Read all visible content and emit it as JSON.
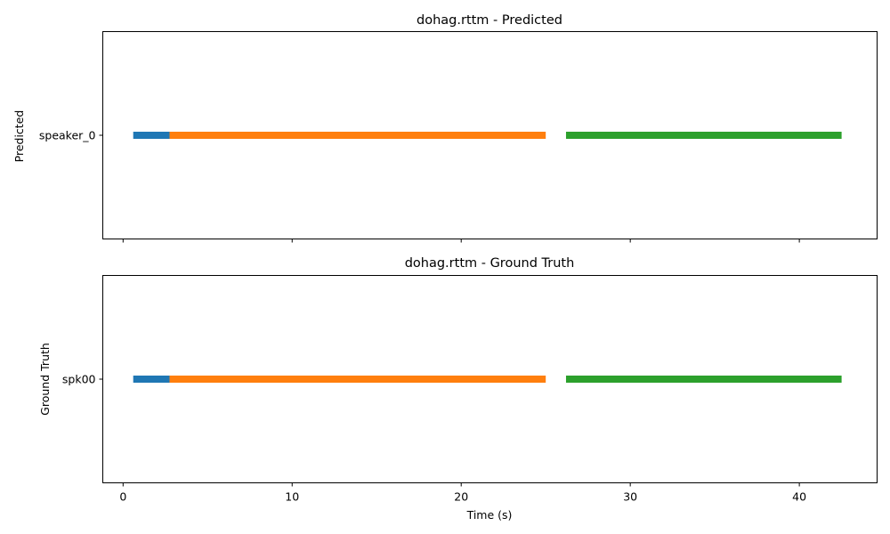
{
  "chart_data": [
    {
      "type": "timeline",
      "title": "dohag.rttm - Predicted",
      "xlabel": "",
      "ylabel": "Predicted",
      "xlim": [
        -1.2,
        44.6
      ],
      "xticks": [
        0,
        10,
        20,
        30,
        40
      ],
      "show_xtick_labels": false,
      "tracks": [
        "speaker_0"
      ],
      "segments": [
        {
          "track": "speaker_0",
          "start": 0.6,
          "end": 2.75,
          "color": "#1f77b4"
        },
        {
          "track": "speaker_0",
          "start": 2.75,
          "end": 25.0,
          "color": "#ff7f0e"
        },
        {
          "track": "speaker_0",
          "start": 26.2,
          "end": 42.5,
          "color": "#2ca02c"
        }
      ]
    },
    {
      "type": "timeline",
      "title": "dohag.rttm - Ground Truth",
      "xlabel": "Time (s)",
      "ylabel": "Ground Truth",
      "xlim": [
        -1.2,
        44.6
      ],
      "xticks": [
        0,
        10,
        20,
        30,
        40
      ],
      "show_xtick_labels": true,
      "tracks": [
        "spk00"
      ],
      "segments": [
        {
          "track": "spk00",
          "start": 0.6,
          "end": 2.75,
          "color": "#1f77b4"
        },
        {
          "track": "spk00",
          "start": 2.75,
          "end": 25.0,
          "color": "#ff7f0e"
        },
        {
          "track": "spk00",
          "start": 26.2,
          "end": 42.5,
          "color": "#2ca02c"
        }
      ]
    }
  ]
}
